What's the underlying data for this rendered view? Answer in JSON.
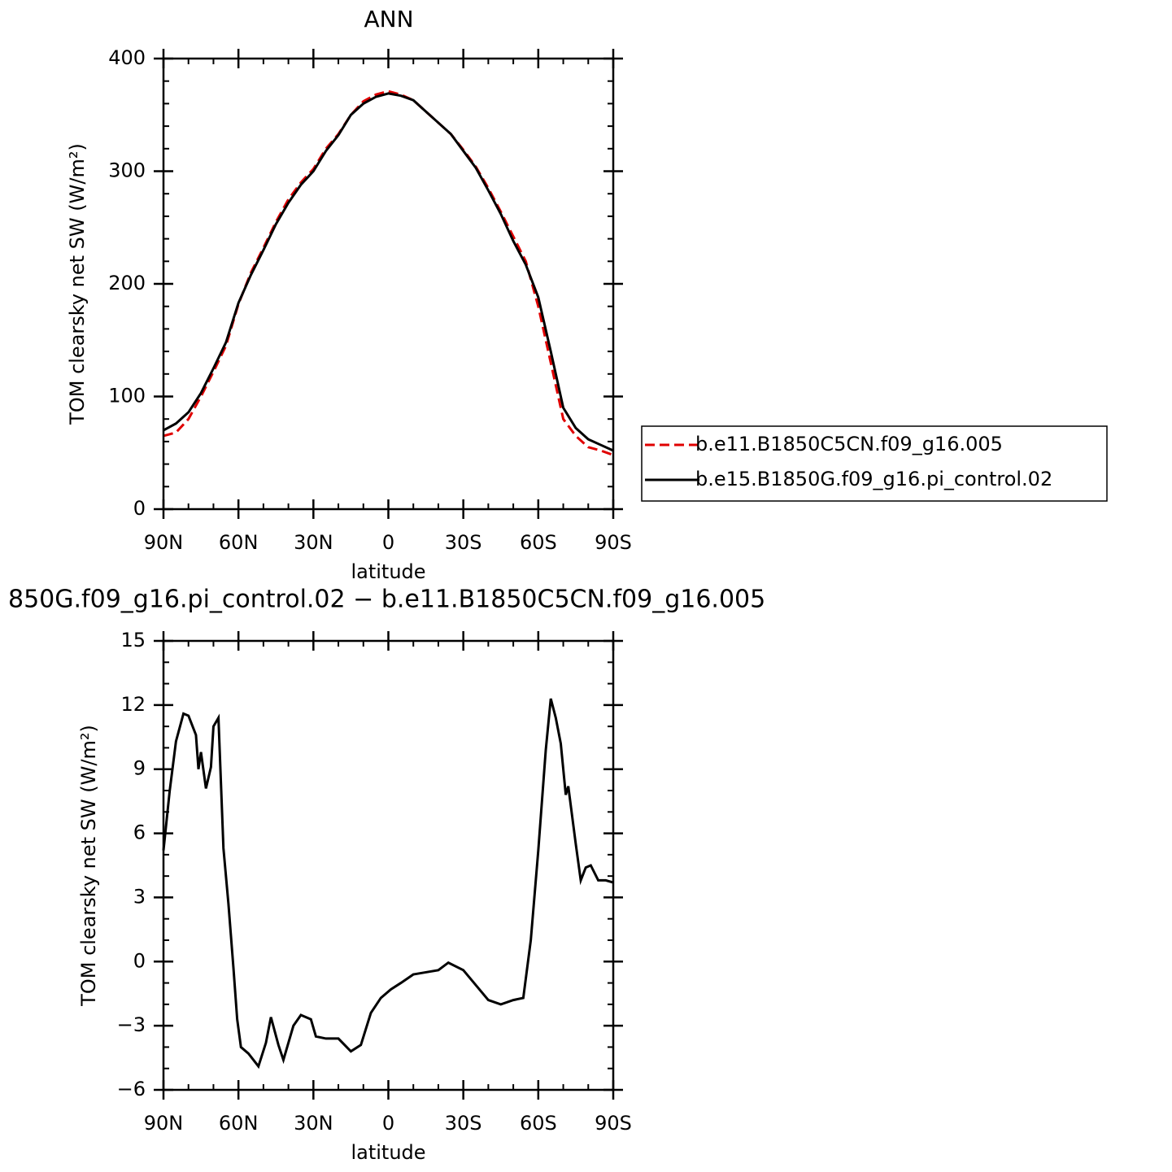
{
  "chart_data": [
    {
      "type": "line",
      "title": "ANN",
      "xlabel": "latitude",
      "ylabel": "TOM clearsky net SW (W/m²)",
      "xlim": [
        90,
        -90
      ],
      "xticks": [
        {
          "value": 90,
          "label": "90N"
        },
        {
          "value": 60,
          "label": "60N"
        },
        {
          "value": 30,
          "label": "30N"
        },
        0,
        {
          "value": -30,
          "label": "30S"
        },
        {
          "value": -60,
          "label": "60S"
        },
        {
          "value": -90,
          "label": "90S"
        }
      ],
      "xminorticks": [
        80,
        70,
        50,
        40,
        20,
        10,
        -10,
        -20,
        -40,
        -50,
        -70,
        -80
      ],
      "ylim": [
        0,
        400
      ],
      "yticks": [
        0,
        100,
        200,
        300,
        400
      ],
      "yminorticks": [
        20,
        40,
        60,
        80,
        120,
        140,
        160,
        180,
        220,
        240,
        260,
        280,
        320,
        340,
        360,
        380
      ],
      "x": [
        90,
        85,
        80,
        75,
        70,
        65,
        60,
        55,
        50,
        45,
        40,
        35,
        30,
        25,
        20,
        15,
        10,
        5,
        0,
        -5,
        -10,
        -15,
        -20,
        -25,
        -30,
        -35,
        -40,
        -45,
        -50,
        -55,
        -60,
        -65,
        -70,
        -75,
        -80,
        -85,
        -90
      ],
      "legend": "right",
      "series": [
        {
          "name": "b.e11.B1850C5CN.f09_g16.005",
          "color": "#e00000",
          "linestyle": "dashed",
          "values": [
            65,
            68,
            80,
            100,
            122,
            145,
            182,
            210,
            232,
            255,
            275,
            290,
            302,
            320,
            333,
            350,
            362,
            368,
            371,
            368,
            363,
            353,
            343,
            333,
            319,
            304,
            285,
            264,
            242,
            220,
            180,
            130,
            80,
            65,
            55,
            52,
            48
          ]
        },
        {
          "name": "b.e15.B1850G.f09_g16.pi_control.02",
          "color": "#000000",
          "linestyle": "solid",
          "values": [
            70,
            76,
            86,
            103,
            125,
            148,
            183,
            208,
            230,
            253,
            272,
            288,
            300,
            318,
            332,
            350,
            360,
            366,
            369,
            367,
            363,
            353,
            343,
            333,
            318,
            303,
            283,
            262,
            238,
            217,
            188,
            140,
            90,
            72,
            62,
            57,
            52
          ]
        }
      ]
    },
    {
      "type": "line",
      "title": "850G.f09_g16.pi_control.02 − b.e11.B1850C5CN.f09_g16.005",
      "xlabel": "latitude",
      "ylabel": "TOM clearsky net SW (W/m²)",
      "xlim": [
        90,
        -90
      ],
      "xticks": [
        {
          "value": 90,
          "label": "90N"
        },
        {
          "value": 60,
          "label": "60N"
        },
        {
          "value": 30,
          "label": "30N"
        },
        0,
        {
          "value": -30,
          "label": "30S"
        },
        {
          "value": -60,
          "label": "60S"
        },
        {
          "value": -90,
          "label": "90S"
        }
      ],
      "xminorticks": [
        80,
        70,
        50,
        40,
        20,
        10,
        -10,
        -20,
        -40,
        -50,
        -70,
        -80
      ],
      "ylim": [
        -6,
        15
      ],
      "yticks": [
        {
          "value": -6,
          "label": "−6"
        },
        {
          "value": -3,
          "label": "−3"
        },
        0,
        3,
        6,
        9,
        12,
        15
      ],
      "yminorticks": [
        -5,
        -4,
        -2,
        -1,
        1,
        2,
        4,
        5,
        7,
        8,
        10,
        11,
        13,
        14
      ],
      "x": [
        90,
        87.5,
        85,
        82,
        80,
        77,
        76,
        75,
        73,
        71,
        70,
        68,
        66,
        64,
        62,
        60.5,
        59,
        56,
        52,
        49,
        47,
        44,
        42,
        38,
        35,
        31,
        29,
        25,
        20,
        15,
        11,
        7,
        3,
        -1,
        -5,
        -10,
        -15,
        -20,
        -24,
        -30,
        -35,
        -40,
        -45,
        -50,
        -54,
        -57,
        -60,
        -63,
        -65,
        -67,
        -69,
        -71,
        -72,
        -75,
        -77,
        -79,
        -81,
        -84,
        -87,
        -90
      ],
      "series": [
        {
          "color": "#000000",
          "linestyle": "solid",
          "values": [
            5.2,
            8,
            10.3,
            11.6,
            11.5,
            10.6,
            9.0,
            9.8,
            8.1,
            9.1,
            11.0,
            11.4,
            5.3,
            2.7,
            -0.3,
            -2.7,
            -4.0,
            -4.3,
            -4.9,
            -3.8,
            -2.6,
            -3.9,
            -4.6,
            -3.0,
            -2.5,
            -2.7,
            -3.5,
            -3.6,
            -3.6,
            -4.2,
            -3.9,
            -2.4,
            -1.7,
            -1.3,
            -1.0,
            -0.6,
            -0.5,
            -0.4,
            -0.05,
            -0.4,
            -1.1,
            -1.8,
            -2.0,
            -1.8,
            -1.7,
            1.0,
            5.2,
            9.9,
            12.3,
            11.4,
            10.2,
            7.8,
            8.2,
            5.5,
            3.8,
            4.4,
            4.5,
            3.8,
            3.8,
            3.7
          ]
        }
      ]
    }
  ]
}
